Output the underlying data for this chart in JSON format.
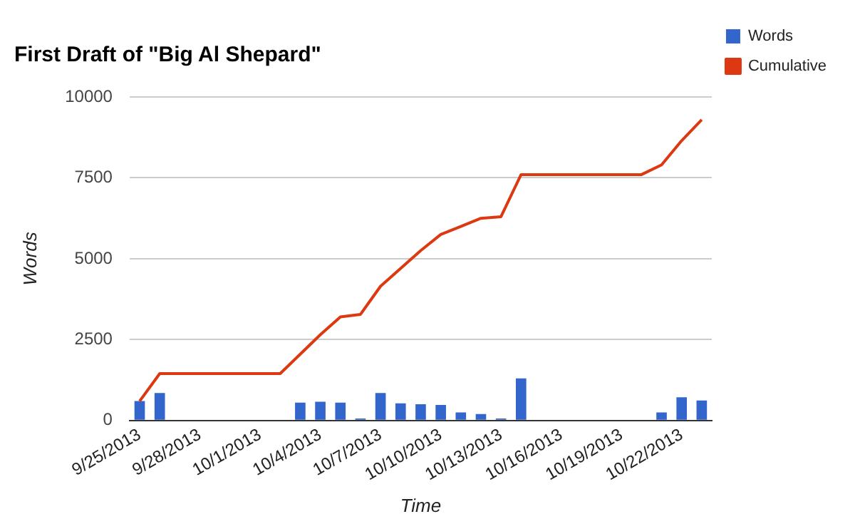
{
  "chart_data": {
    "type": "bar",
    "title": "First Draft of \"Big Al Shepard\"",
    "xlabel": "Time",
    "ylabel": "Words",
    "categories": [
      "9/25/2013",
      null,
      null,
      "9/28/2013",
      null,
      null,
      "10/1/2013",
      null,
      null,
      "10/4/2013",
      null,
      null,
      "10/7/2013",
      null,
      null,
      "10/10/2013",
      null,
      null,
      "10/13/2013",
      null,
      null,
      "10/16/2013",
      null,
      null,
      "10/19/2013",
      null,
      null,
      "10/22/2013",
      null
    ],
    "series": [
      {
        "name": "Words",
        "color": "#3366cc",
        "values": [
          600,
          850,
          0,
          0,
          0,
          0,
          0,
          0,
          550,
          580,
          550,
          60,
          850,
          530,
          500,
          480,
          250,
          200,
          60,
          1300,
          0,
          0,
          0,
          0,
          0,
          0,
          250,
          720,
          620
        ]
      },
      {
        "name": "Cumulative",
        "type": "line",
        "color": "#dc3912",
        "values": [
          600,
          1450,
          1450,
          1450,
          1450,
          1450,
          1450,
          1450,
          2050,
          2650,
          3200,
          3280,
          4150,
          4700,
          5250,
          5750,
          6000,
          6250,
          6300,
          7600,
          7600,
          7600,
          7600,
          7600,
          7600,
          7600,
          7900,
          8650,
          9300
        ]
      }
    ],
    "ylim": [
      0,
      10000
    ],
    "yticks": [
      0,
      2500,
      5000,
      7500,
      10000
    ],
    "grid": "y",
    "legend": "top right",
    "marker": "none"
  }
}
